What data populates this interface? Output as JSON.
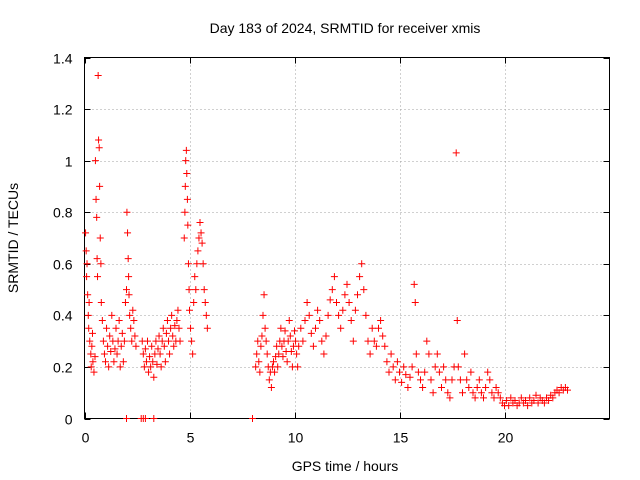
{
  "chart_data": {
    "type": "scatter",
    "title": "Day 183 of 2024, SRMTID for receiver xmis",
    "xlabel": "GPS time / hours",
    "ylabel": "SRMTID / TECUs",
    "xlim": [
      0,
      25
    ],
    "ylim": [
      0,
      1.4
    ],
    "xticks": [
      0,
      5,
      10,
      15,
      20
    ],
    "xtick_labels": [
      "0",
      "5",
      "10",
      "15",
      "20"
    ],
    "yticks": [
      0,
      0.2,
      0.4,
      0.6,
      0.8,
      1,
      1.2,
      1.4
    ],
    "ytick_labels": [
      "0",
      "0.2",
      "0.4",
      "0.6",
      "0.8",
      "1",
      "1.2",
      "1.4"
    ],
    "grid": true,
    "marker": "+",
    "series": [
      {
        "name": "SRMTID",
        "color": "#ff0000",
        "points": [
          [
            0.05,
            0.72
          ],
          [
            0.08,
            0.65
          ],
          [
            0.1,
            0.55
          ],
          [
            0.12,
            0.6
          ],
          [
            0.15,
            0.48
          ],
          [
            0.18,
            0.4
          ],
          [
            0.2,
            0.35
          ],
          [
            0.22,
            0.45
          ],
          [
            0.25,
            0.3
          ],
          [
            0.3,
            0.25
          ],
          [
            0.32,
            0.2
          ],
          [
            0.35,
            0.28
          ],
          [
            0.38,
            0.33
          ],
          [
            0.4,
            0.22
          ],
          [
            0.45,
            0.18
          ],
          [
            0.5,
            0.24
          ],
          [
            0.52,
            1.0
          ],
          [
            0.55,
            0.85
          ],
          [
            0.58,
            0.78
          ],
          [
            0.6,
            0.62
          ],
          [
            0.62,
            0.55
          ],
          [
            0.65,
            1.33
          ],
          [
            0.67,
            1.08
          ],
          [
            0.7,
            1.05
          ],
          [
            0.72,
            0.9
          ],
          [
            0.75,
            0.7
          ],
          [
            0.78,
            0.6
          ],
          [
            0.8,
            0.45
          ],
          [
            0.85,
            0.38
          ],
          [
            0.9,
            0.3
          ],
          [
            0.95,
            0.25
          ],
          [
            1.0,
            0.22
          ],
          [
            1.05,
            0.35
          ],
          [
            1.1,
            0.28
          ],
          [
            1.15,
            0.2
          ],
          [
            1.2,
            0.32
          ],
          [
            1.25,
            0.26
          ],
          [
            1.3,
            0.4
          ],
          [
            1.35,
            0.3
          ],
          [
            1.4,
            0.22
          ],
          [
            1.45,
            0.27
          ],
          [
            1.5,
            0.35
          ],
          [
            1.55,
            0.25
          ],
          [
            1.6,
            0.3
          ],
          [
            1.65,
            0.38
          ],
          [
            1.7,
            0.2
          ],
          [
            1.75,
            0.28
          ],
          [
            1.8,
            0.33
          ],
          [
            1.85,
            0.22
          ],
          [
            1.9,
            0.3
          ],
          [
            1.95,
            0.45
          ],
          [
            2.0,
            0.5
          ],
          [
            2.02,
            0.8
          ],
          [
            2.05,
            0.72
          ],
          [
            2.08,
            0.62
          ],
          [
            2.1,
            0.55
          ],
          [
            2.12,
            0.48
          ],
          [
            2.15,
            0.4
          ],
          [
            2.2,
            0.35
          ],
          [
            2.25,
            0.3
          ],
          [
            2.3,
            0.42
          ],
          [
            2.35,
            0.38
          ],
          [
            2.4,
            0.32
          ],
          [
            2.45,
            0.28
          ],
          [
            2.75,
            0.3
          ],
          [
            2.8,
            0.25
          ],
          [
            2.85,
            0.2
          ],
          [
            2.9,
            0.27
          ],
          [
            2.95,
            0.22
          ],
          [
            3.0,
            0.3
          ],
          [
            3.05,
            0.18
          ],
          [
            3.1,
            0.24
          ],
          [
            3.15,
            0.2
          ],
          [
            3.2,
            0.28
          ],
          [
            3.25,
            0.22
          ],
          [
            3.3,
            0.16
          ],
          [
            3.35,
            0.25
          ],
          [
            3.4,
            0.3
          ],
          [
            3.45,
            0.21
          ],
          [
            3.5,
            0.27
          ],
          [
            3.55,
            0.32
          ],
          [
            3.6,
            0.25
          ],
          [
            3.65,
            0.2
          ],
          [
            3.7,
            0.3
          ],
          [
            3.75,
            0.35
          ],
          [
            3.8,
            0.28
          ],
          [
            3.85,
            0.22
          ],
          [
            3.9,
            0.33
          ],
          [
            3.95,
            0.38
          ],
          [
            4.0,
            0.3
          ],
          [
            4.05,
            0.25
          ],
          [
            4.1,
            0.35
          ],
          [
            4.15,
            0.4
          ],
          [
            4.2,
            0.32
          ],
          [
            4.25,
            0.28
          ],
          [
            4.3,
            0.36
          ],
          [
            4.35,
            0.3
          ],
          [
            4.4,
            0.38
          ],
          [
            4.45,
            0.42
          ],
          [
            4.5,
            0.35
          ],
          [
            4.55,
            0.3
          ],
          [
            4.75,
            0.7
          ],
          [
            4.78,
            0.8
          ],
          [
            4.8,
            0.9
          ],
          [
            4.82,
            1.0
          ],
          [
            4.85,
            1.04
          ],
          [
            4.87,
            0.95
          ],
          [
            4.9,
            0.85
          ],
          [
            4.92,
            0.75
          ],
          [
            4.95,
            0.6
          ],
          [
            4.98,
            0.5
          ],
          [
            5.0,
            0.42
          ],
          [
            5.05,
            0.35
          ],
          [
            5.1,
            0.3
          ],
          [
            5.15,
            0.25
          ],
          [
            5.2,
            0.45
          ],
          [
            5.25,
            0.55
          ],
          [
            5.3,
            0.5
          ],
          [
            5.35,
            0.6
          ],
          [
            5.4,
            0.65
          ],
          [
            5.45,
            0.7
          ],
          [
            5.5,
            0.76
          ],
          [
            5.55,
            0.72
          ],
          [
            5.6,
            0.68
          ],
          [
            5.65,
            0.6
          ],
          [
            5.7,
            0.5
          ],
          [
            5.75,
            0.45
          ],
          [
            5.8,
            0.4
          ],
          [
            5.85,
            0.35
          ],
          [
            8.15,
            0.2
          ],
          [
            8.2,
            0.25
          ],
          [
            8.25,
            0.3
          ],
          [
            8.3,
            0.22
          ],
          [
            8.35,
            0.18
          ],
          [
            8.4,
            0.28
          ],
          [
            8.45,
            0.32
          ],
          [
            8.5,
            0.4
          ],
          [
            8.55,
            0.48
          ],
          [
            8.6,
            0.35
          ],
          [
            8.65,
            0.3
          ],
          [
            8.7,
            0.25
          ],
          [
            8.75,
            0.2
          ],
          [
            8.8,
            0.15
          ],
          [
            8.85,
            0.18
          ],
          [
            8.9,
            0.12
          ],
          [
            8.95,
            0.2
          ],
          [
            9.0,
            0.22
          ],
          [
            9.05,
            0.18
          ],
          [
            9.1,
            0.24
          ],
          [
            9.15,
            0.28
          ],
          [
            9.2,
            0.2
          ],
          [
            9.25,
            0.25
          ],
          [
            9.3,
            0.3
          ],
          [
            9.35,
            0.35
          ],
          [
            9.4,
            0.28
          ],
          [
            9.45,
            0.24
          ],
          [
            9.5,
            0.3
          ],
          [
            9.55,
            0.34
          ],
          [
            9.6,
            0.26
          ],
          [
            9.65,
            0.22
          ],
          [
            9.7,
            0.3
          ],
          [
            9.75,
            0.38
          ],
          [
            9.8,
            0.32
          ],
          [
            9.85,
            0.26
          ],
          [
            9.9,
            0.2
          ],
          [
            9.95,
            0.28
          ],
          [
            10.0,
            0.34
          ],
          [
            10.05,
            0.3
          ],
          [
            10.1,
            0.25
          ],
          [
            10.15,
            0.2
          ],
          [
            10.2,
            0.28
          ],
          [
            10.3,
            0.35
          ],
          [
            10.4,
            0.3
          ],
          [
            10.5,
            0.38
          ],
          [
            10.6,
            0.45
          ],
          [
            10.7,
            0.4
          ],
          [
            10.8,
            0.33
          ],
          [
            10.9,
            0.28
          ],
          [
            11.0,
            0.35
          ],
          [
            11.1,
            0.42
          ],
          [
            11.2,
            0.38
          ],
          [
            11.3,
            0.3
          ],
          [
            11.4,
            0.25
          ],
          [
            11.5,
            0.32
          ],
          [
            11.6,
            0.4
          ],
          [
            11.7,
            0.46
          ],
          [
            11.8,
            0.5
          ],
          [
            11.9,
            0.55
          ],
          [
            12.0,
            0.45
          ],
          [
            12.1,
            0.4
          ],
          [
            12.2,
            0.35
          ],
          [
            12.3,
            0.42
          ],
          [
            12.4,
            0.48
          ],
          [
            12.5,
            0.52
          ],
          [
            12.6,
            0.45
          ],
          [
            12.7,
            0.38
          ],
          [
            12.8,
            0.3
          ],
          [
            12.9,
            0.42
          ],
          [
            13.0,
            0.48
          ],
          [
            13.1,
            0.55
          ],
          [
            13.2,
            0.6
          ],
          [
            13.3,
            0.5
          ],
          [
            13.4,
            0.4
          ],
          [
            13.5,
            0.3
          ],
          [
            13.6,
            0.25
          ],
          [
            13.7,
            0.35
          ],
          [
            13.8,
            0.3
          ],
          [
            13.9,
            0.28
          ],
          [
            14.0,
            0.35
          ],
          [
            14.1,
            0.38
          ],
          [
            14.2,
            0.32
          ],
          [
            14.3,
            0.28
          ],
          [
            14.4,
            0.22
          ],
          [
            14.5,
            0.18
          ],
          [
            14.6,
            0.25
          ],
          [
            14.7,
            0.2
          ],
          [
            14.8,
            0.15
          ],
          [
            14.9,
            0.22
          ],
          [
            15.0,
            0.18
          ],
          [
            15.1,
            0.14
          ],
          [
            15.2,
            0.2
          ],
          [
            15.3,
            0.17
          ],
          [
            15.4,
            0.12
          ],
          [
            15.5,
            0.16
          ],
          [
            15.6,
            0.2
          ],
          [
            15.7,
            0.52
          ],
          [
            15.75,
            0.45
          ],
          [
            15.8,
            0.25
          ],
          [
            15.9,
            0.18
          ],
          [
            16.0,
            0.15
          ],
          [
            16.1,
            0.12
          ],
          [
            16.2,
            0.18
          ],
          [
            16.3,
            0.3
          ],
          [
            16.4,
            0.25
          ],
          [
            16.5,
            0.15
          ],
          [
            16.6,
            0.1
          ],
          [
            16.7,
            0.2
          ],
          [
            16.8,
            0.25
          ],
          [
            16.9,
            0.18
          ],
          [
            17.0,
            0.12
          ],
          [
            17.1,
            0.2
          ],
          [
            17.2,
            0.15
          ],
          [
            17.3,
            0.1
          ],
          [
            17.4,
            0.08
          ],
          [
            17.5,
            0.15
          ],
          [
            17.6,
            0.2
          ],
          [
            17.7,
            1.03
          ],
          [
            17.75,
            0.38
          ],
          [
            17.8,
            0.2
          ],
          [
            17.9,
            0.15
          ],
          [
            18.0,
            0.1
          ],
          [
            18.1,
            0.25
          ],
          [
            18.2,
            0.15
          ],
          [
            18.3,
            0.12
          ],
          [
            18.4,
            0.18
          ],
          [
            18.5,
            0.1
          ],
          [
            18.6,
            0.08
          ],
          [
            18.7,
            0.12
          ],
          [
            18.8,
            0.15
          ],
          [
            18.9,
            0.1
          ],
          [
            19.0,
            0.08
          ],
          [
            19.1,
            0.12
          ],
          [
            19.2,
            0.18
          ],
          [
            19.3,
            0.15
          ],
          [
            19.4,
            0.1
          ],
          [
            19.5,
            0.08
          ],
          [
            19.6,
            0.12
          ],
          [
            19.7,
            0.1
          ],
          [
            19.8,
            0.08
          ],
          [
            19.9,
            0.06
          ],
          [
            20.0,
            0.05
          ],
          [
            20.1,
            0.07
          ],
          [
            20.2,
            0.05
          ],
          [
            20.3,
            0.08
          ],
          [
            20.4,
            0.06
          ],
          [
            20.5,
            0.07
          ],
          [
            20.6,
            0.05
          ],
          [
            20.7,
            0.06
          ],
          [
            20.8,
            0.08
          ],
          [
            20.9,
            0.06
          ],
          [
            21.0,
            0.07
          ],
          [
            21.1,
            0.05
          ],
          [
            21.2,
            0.08
          ],
          [
            21.3,
            0.06
          ],
          [
            21.4,
            0.07
          ],
          [
            21.5,
            0.09
          ],
          [
            21.6,
            0.06
          ],
          [
            21.7,
            0.08
          ],
          [
            21.8,
            0.07
          ],
          [
            21.9,
            0.06
          ],
          [
            22.0,
            0.08
          ],
          [
            22.1,
            0.07
          ],
          [
            22.2,
            0.09
          ],
          [
            22.3,
            0.08
          ],
          [
            22.4,
            0.1
          ],
          [
            22.5,
            0.11
          ],
          [
            22.6,
            0.1
          ],
          [
            22.7,
            0.12
          ],
          [
            22.8,
            0.11
          ],
          [
            22.9,
            0.12
          ],
          [
            23.0,
            0.11
          ],
          [
            2.0,
            0.0
          ],
          [
            2.7,
            0.0
          ],
          [
            2.8,
            0.0
          ],
          [
            2.9,
            0.0
          ],
          [
            3.3,
            0.0
          ],
          [
            8.0,
            0.0
          ]
        ]
      }
    ]
  }
}
